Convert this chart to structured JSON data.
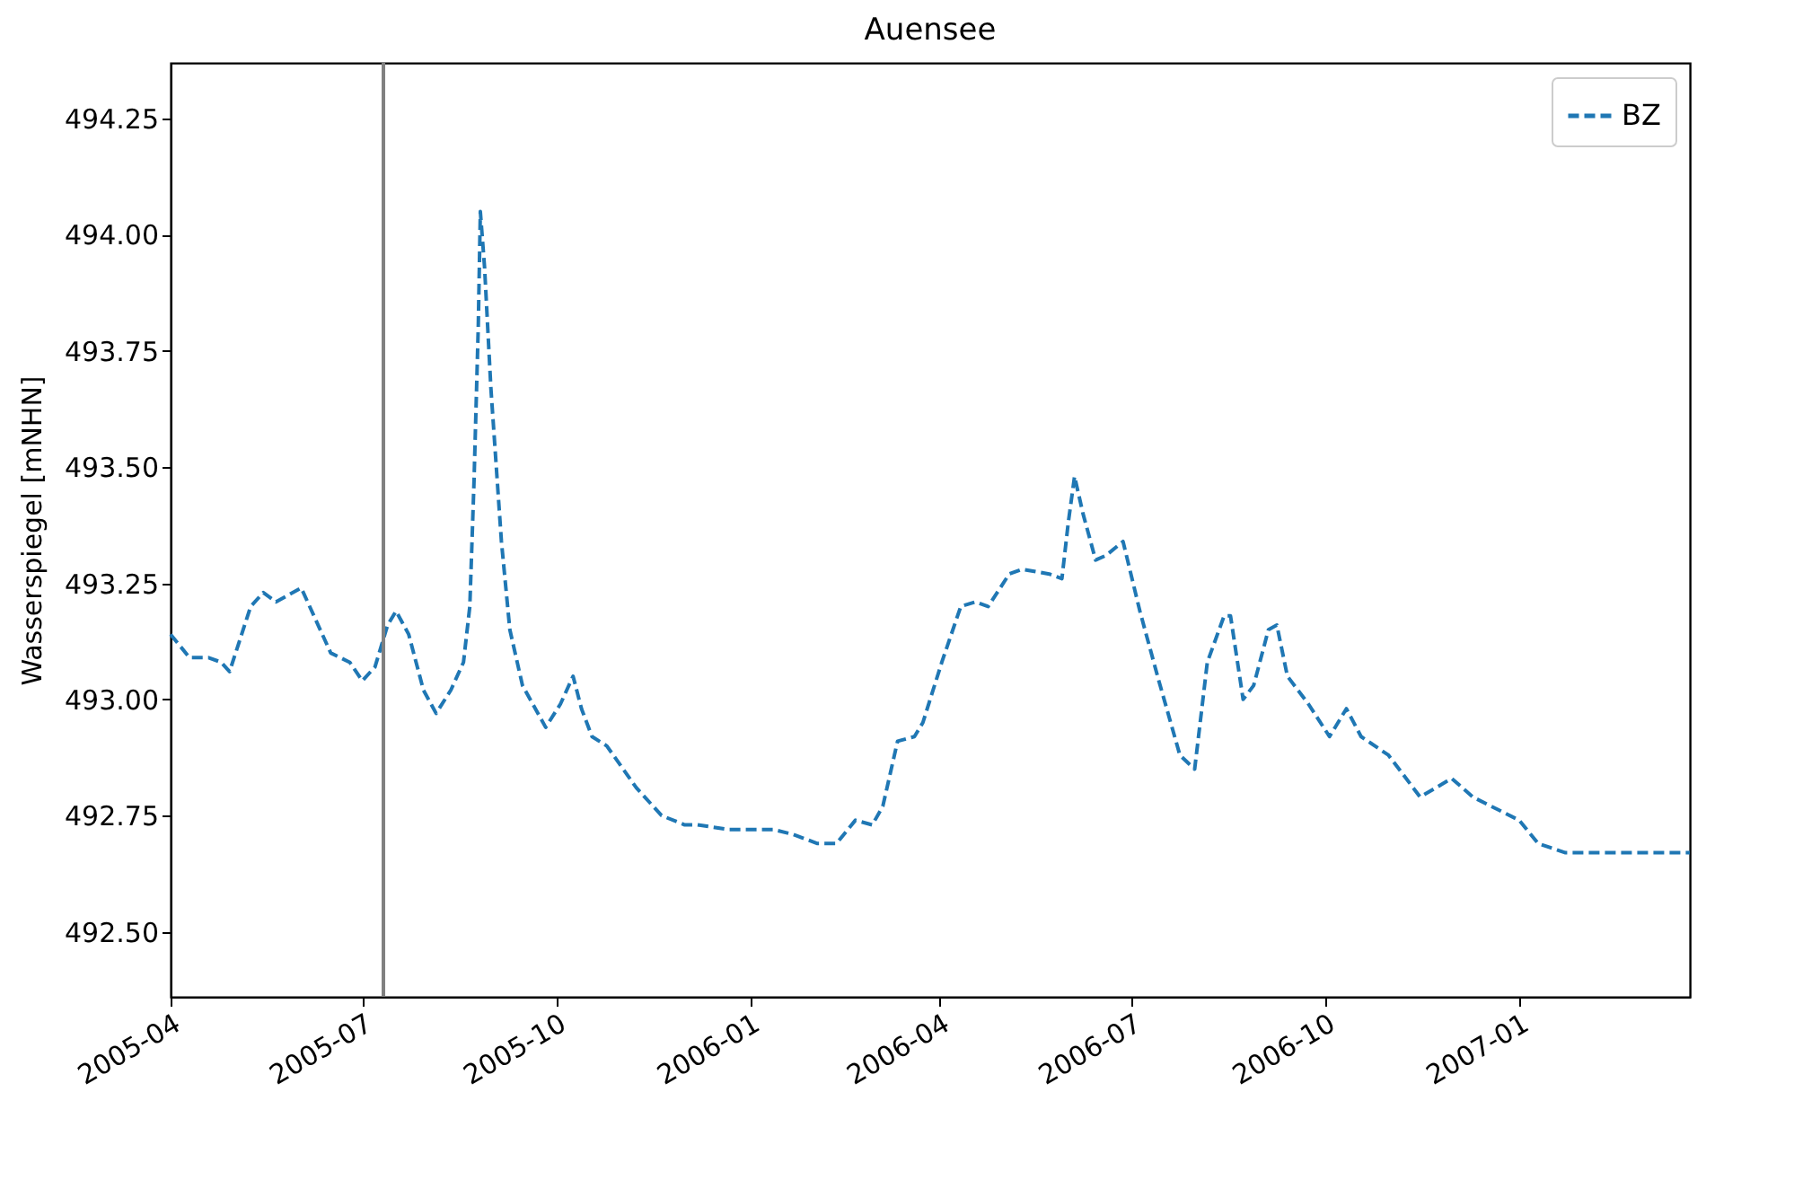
{
  "chart_data": {
    "type": "line",
    "title": "Auensee",
    "ylabel": "Wasserspiegel [mNHN]",
    "xlim": [
      "2005-04-01",
      "2007-03-23"
    ],
    "ylim": [
      492.36,
      494.37
    ],
    "xticks": [
      "2005-04",
      "2005-07",
      "2005-10",
      "2006-01",
      "2006-04",
      "2006-07",
      "2006-10",
      "2007-01"
    ],
    "yticks": [
      {
        "value": 492.5,
        "label": "492.50"
      },
      492.75,
      {
        "value": 493.0,
        "label": "493.00"
      },
      493.25,
      {
        "value": 493.5,
        "label": "493.50"
      },
      493.75,
      {
        "value": 494.0,
        "label": "494.00"
      },
      494.25
    ],
    "grid": false,
    "legend": "top right",
    "line_style": "dashed",
    "marker": "none",
    "ref_lines": [
      {
        "axis": "x",
        "value": "2005-07-11",
        "color": "#808080"
      }
    ],
    "x": [
      "2005-04-01",
      "2005-04-10",
      "2005-04-19",
      "2005-04-25",
      "2005-04-29",
      "2005-05-09",
      "2005-05-15",
      "2005-05-21",
      "2005-06-02",
      "2005-06-09",
      "2005-06-16",
      "2005-06-25",
      "2005-07-01",
      "2005-07-07",
      "2005-07-13",
      "2005-07-17",
      "2005-07-23",
      "2005-07-30",
      "2005-08-05",
      "2005-08-12",
      "2005-08-18",
      "2005-08-21",
      "2005-08-23",
      "2005-08-25",
      "2005-08-26",
      "2005-08-28",
      "2005-08-31",
      "2005-09-05",
      "2005-09-09",
      "2005-09-15",
      "2005-09-26",
      "2005-10-03",
      "2005-10-09",
      "2005-10-13",
      "2005-10-18",
      "2005-10-25",
      "2005-11-08",
      "2005-11-20",
      "2005-12-01",
      "2005-12-07",
      "2005-12-22",
      "2006-01-12",
      "2006-01-21",
      "2006-02-02",
      "2006-02-11",
      "2006-02-20",
      "2006-02-28",
      "2006-03-05",
      "2006-03-12",
      "2006-03-20",
      "2006-03-24",
      "2006-04-02",
      "2006-04-11",
      "2006-04-18",
      "2006-04-24",
      "2006-05-04",
      "2006-05-10",
      "2006-05-23",
      "2006-05-29",
      "2006-06-01",
      "2006-06-04",
      "2006-06-08",
      "2006-06-14",
      "2006-06-19",
      "2006-06-27",
      "2006-07-05",
      "2006-07-14",
      "2006-07-24",
      "2006-07-31",
      "2006-08-06",
      "2006-08-14",
      "2006-08-17",
      "2006-08-23",
      "2006-08-28",
      "2006-09-04",
      "2006-09-08",
      "2006-09-13",
      "2006-09-23",
      "2006-10-03",
      "2006-10-11",
      "2006-10-18",
      "2006-10-31",
      "2006-11-15",
      "2006-11-30",
      "2006-12-10",
      "2007-01-01",
      "2007-01-10",
      "2007-01-23",
      "2007-02-17",
      "2007-03-23"
    ],
    "series": [
      {
        "name": "BZ",
        "color": "#1f77b4",
        "values": [
          493.14,
          493.09,
          493.09,
          493.08,
          493.06,
          493.2,
          493.23,
          493.21,
          493.24,
          493.17,
          493.1,
          493.08,
          493.04,
          493.07,
          493.16,
          493.19,
          493.14,
          493.02,
          492.97,
          493.02,
          493.08,
          493.2,
          493.47,
          493.8,
          494.05,
          493.93,
          493.67,
          493.34,
          493.15,
          493.03,
          492.94,
          492.99,
          493.05,
          492.98,
          492.92,
          492.9,
          492.81,
          492.75,
          492.73,
          492.73,
          492.72,
          492.72,
          492.71,
          492.69,
          492.69,
          492.74,
          492.73,
          492.77,
          492.91,
          492.92,
          492.95,
          493.08,
          493.2,
          493.21,
          493.2,
          493.27,
          493.28,
          493.27,
          493.26,
          493.38,
          493.48,
          493.4,
          493.3,
          493.31,
          493.34,
          493.19,
          493.04,
          492.88,
          492.85,
          493.08,
          493.18,
          493.18,
          493.0,
          493.03,
          493.15,
          493.16,
          493.05,
          492.99,
          492.92,
          492.98,
          492.92,
          492.88,
          492.79,
          492.83,
          492.79,
          492.74,
          492.69,
          492.67,
          492.67,
          492.67
        ]
      }
    ]
  }
}
